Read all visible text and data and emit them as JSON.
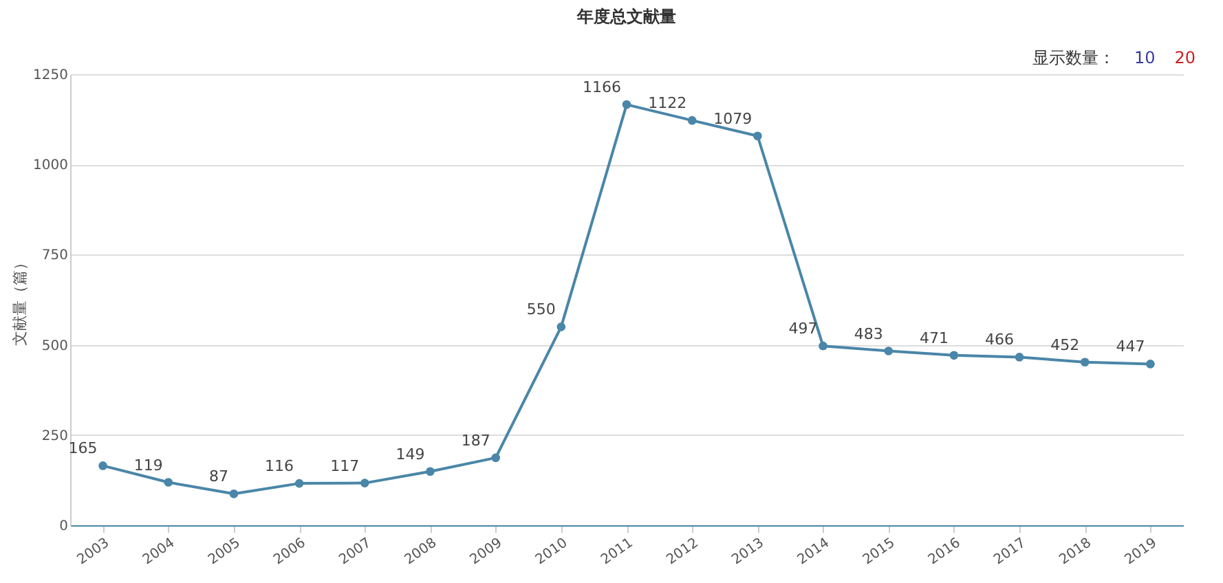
{
  "chart_data": {
    "type": "line",
    "title": "年度总文献量",
    "ylabel": "文献量（篇）",
    "annotations": [
      "显示数量：",
      "10",
      "20"
    ],
    "categories": [
      "2003",
      "2004",
      "2005",
      "2006",
      "2007",
      "2008",
      "2009",
      "2010",
      "2011",
      "2012",
      "2013",
      "2014",
      "2015",
      "2016",
      "2017",
      "2018",
      "2019"
    ],
    "series": [
      {
        "color": "#4a86a8",
        "values": [
          165,
          119,
          87,
          116,
          117,
          149,
          187,
          550,
          1166,
          1122,
          1079,
          497,
          483,
          471,
          466,
          452,
          447
        ]
      }
    ],
    "ylim": [
      0,
      1250
    ],
    "yticks": [
      0,
      250,
      500,
      750,
      1000,
      1250
    ],
    "grid": "y",
    "data_labels": true,
    "marker": "circle",
    "line_style": "solid",
    "legend": false
  }
}
